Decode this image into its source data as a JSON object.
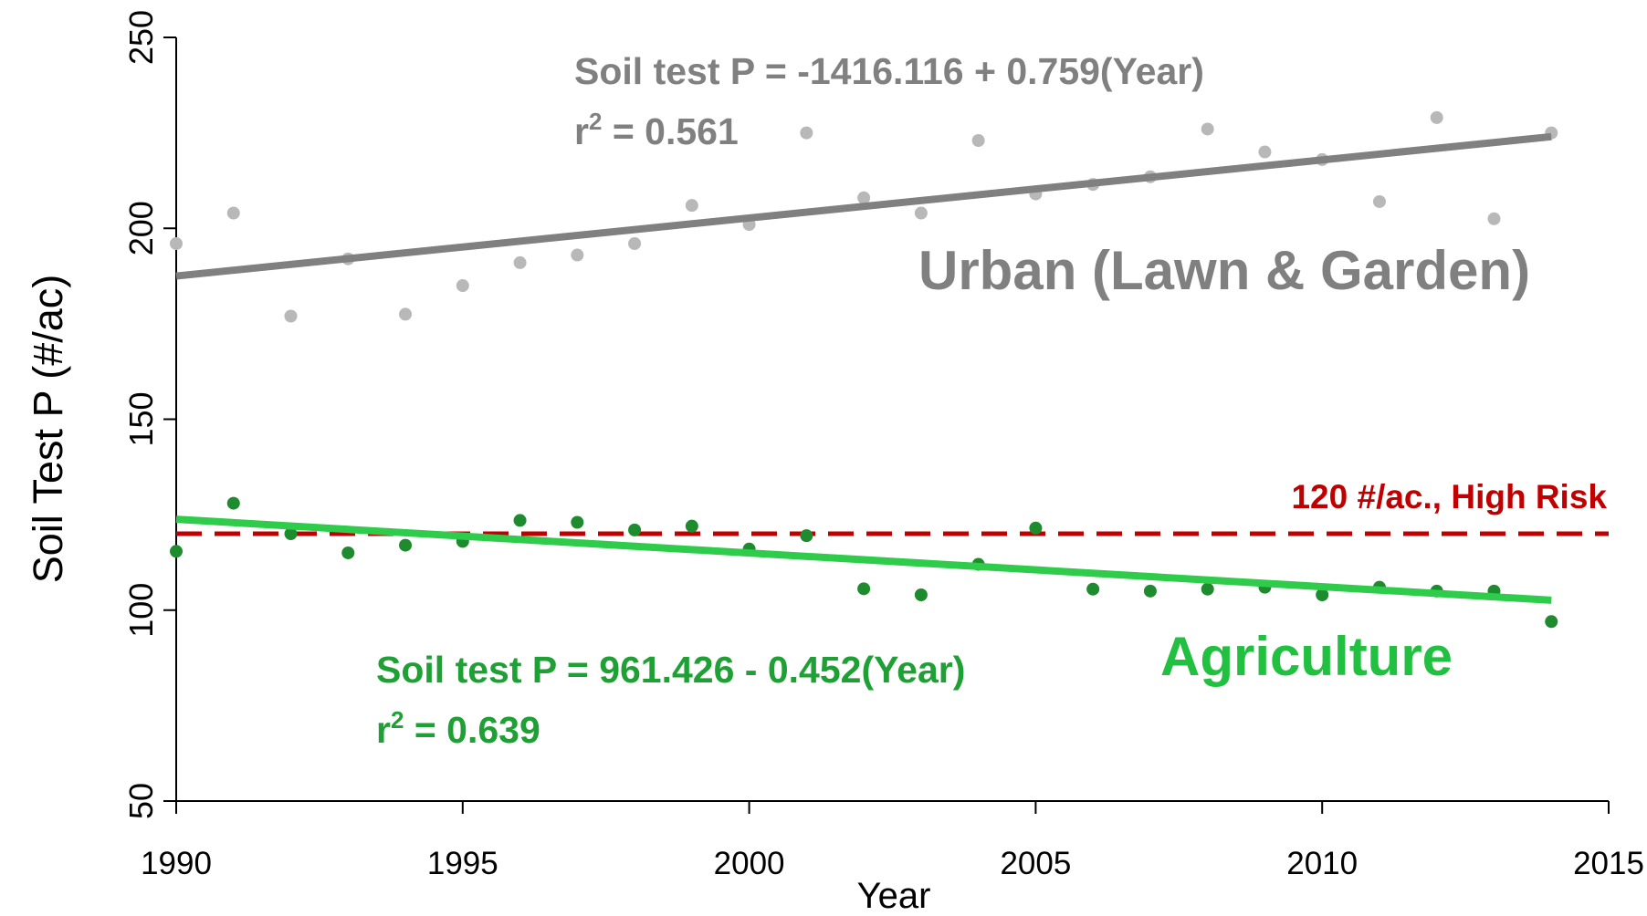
{
  "chart_data": {
    "type": "scatter",
    "xlabel": "Year",
    "ylabel": "Soil Test P (#/ac)",
    "xlim": [
      1990,
      2015
    ],
    "ylim": [
      50,
      250
    ],
    "xticks": [
      1990,
      1995,
      2000,
      2005,
      2010,
      2015
    ],
    "yticks": [
      50,
      100,
      150,
      200,
      250
    ],
    "x": [
      1990,
      1991,
      1992,
      1993,
      1994,
      1995,
      1996,
      1997,
      1998,
      1999,
      2000,
      2001,
      2002,
      2003,
      2004,
      2005,
      2006,
      2007,
      2008,
      2009,
      2010,
      2011,
      2012,
      2013,
      2014
    ],
    "series": [
      {
        "name": "Urban (Lawn & Garden)",
        "color": "#b8b8b8",
        "trend_color": "#808080",
        "values": [
          196,
          204,
          177,
          192,
          177.5,
          185,
          191,
          193,
          196,
          206,
          201,
          225,
          208,
          204,
          223,
          209,
          211.5,
          213.5,
          226,
          220,
          218,
          207,
          229,
          202.5,
          225
        ],
        "trend": {
          "x": [
            1990,
            2014
          ],
          "values": [
            187.5,
            224
          ]
        },
        "equation": "Soil test P = -1416.116 + 0.759(Year)",
        "r2": [
          "r",
          "2",
          " = 0.561"
        ]
      },
      {
        "name": "Agriculture",
        "color": "#1e8c2e",
        "trend_color": "#2ecc4a",
        "label_color": "#22c040",
        "eq_color": "#1fa035",
        "values": [
          115.4,
          128,
          120,
          115,
          117,
          118,
          123.5,
          123,
          121,
          122,
          116,
          119.5,
          105.6,
          104,
          112,
          121.5,
          105.5,
          105,
          105.5,
          106,
          104,
          106,
          105,
          105,
          97
        ],
        "trend": {
          "x": [
            1990,
            2014
          ],
          "values": [
            123.8,
            102.6
          ]
        },
        "equation": "Soil test P = 961.426 - 0.452(Year)",
        "r2": [
          "r",
          "2",
          " = 0.639"
        ]
      }
    ],
    "reference_line": {
      "value": 120,
      "label": "120 #/ac., High Risk",
      "color": "#c00000"
    }
  }
}
